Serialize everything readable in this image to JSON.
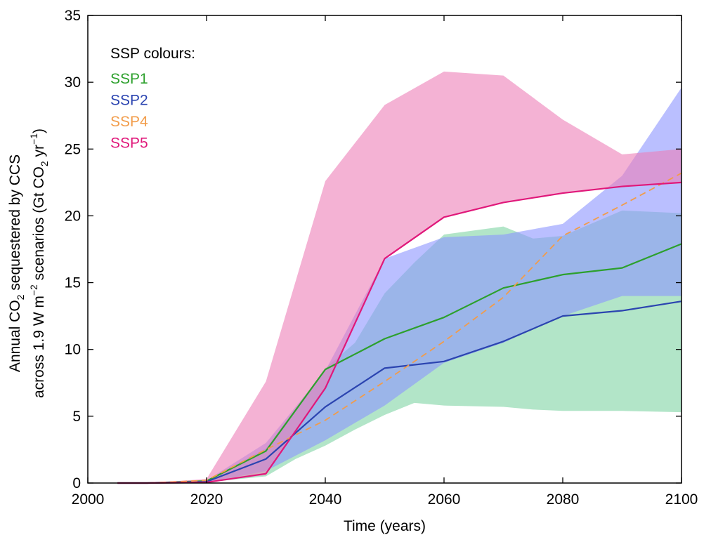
{
  "chart_data": {
    "type": "area",
    "xlabel": "Time (years)",
    "ylabel_line1": "Annual CO2 sequestered by CCS",
    "ylabel_line2": "across 1.9 W m−2 scenarios (Gt CO2 yr−1)",
    "xlim": [
      2000,
      2100
    ],
    "ylim": [
      0,
      35
    ],
    "xticks": [
      2000,
      2020,
      2040,
      2060,
      2080,
      2100
    ],
    "yticks": [
      0,
      5,
      10,
      15,
      20,
      25,
      30,
      35
    ],
    "grid": false,
    "legend": {
      "title": "SSP colours:",
      "placement": "top-left"
    },
    "series": [
      {
        "name": "SSP1",
        "color": "#2ca02c",
        "band_color": "#7fd3a3",
        "band_opacity": 0.6,
        "median": {
          "x": [
            2005,
            2010,
            2020,
            2030,
            2040,
            2050,
            2060,
            2070,
            2080,
            2090,
            2100
          ],
          "y": [
            0,
            0,
            0.15,
            2.4,
            8.5,
            10.8,
            12.4,
            14.6,
            15.6,
            16.1,
            17.9
          ]
        },
        "band": {
          "x": [
            2005,
            2010,
            2020,
            2030,
            2035,
            2040,
            2045,
            2050,
            2055,
            2060,
            2070,
            2075,
            2080,
            2090,
            2100
          ],
          "lower": [
            0,
            0,
            0.05,
            0.5,
            1.8,
            2.8,
            4.0,
            5.1,
            6.0,
            5.8,
            5.7,
            5.5,
            5.4,
            5.4,
            5.3
          ],
          "upper": [
            0,
            0,
            0.2,
            2.6,
            5.6,
            8.6,
            10.5,
            14.2,
            16.5,
            18.6,
            19.2,
            18.3,
            18.5,
            20.4,
            20.2
          ]
        }
      },
      {
        "name": "SSP2",
        "color": "#2b44b0",
        "band_color": "#8c94ff",
        "band_opacity": 0.6,
        "median": {
          "x": [
            2005,
            2010,
            2020,
            2030,
            2040,
            2050,
            2060,
            2070,
            2080,
            2090,
            2100
          ],
          "y": [
            0,
            0,
            0.1,
            1.8,
            5.7,
            8.6,
            9.1,
            10.6,
            12.5,
            12.9,
            13.6
          ]
        },
        "band": {
          "x": [
            2005,
            2010,
            2020,
            2030,
            2040,
            2050,
            2060,
            2070,
            2080,
            2090,
            2100
          ],
          "lower": [
            0,
            0,
            0.05,
            0.9,
            3.2,
            5.8,
            9.0,
            10.5,
            12.5,
            14.0,
            14.0
          ],
          "upper": [
            0,
            0,
            0.2,
            3.0,
            8.4,
            16.8,
            18.4,
            18.6,
            19.4,
            23.0,
            29.6
          ]
        }
      },
      {
        "name": "SSP4",
        "color": "#f29c4a",
        "dashed": true,
        "median": {
          "x": [
            2005,
            2010,
            2020,
            2030,
            2040,
            2050,
            2060,
            2070,
            2080,
            2090,
            2100
          ],
          "y": [
            0,
            0,
            0.2,
            2.5,
            4.7,
            7.6,
            10.6,
            13.9,
            18.5,
            20.8,
            23.2
          ]
        }
      },
      {
        "name": "SSP5",
        "color": "#e0187a",
        "band_color": "#ec7fb8",
        "band_opacity": 0.6,
        "median": {
          "x": [
            2005,
            2010,
            2020,
            2030,
            2040,
            2050,
            2060,
            2070,
            2080,
            2090,
            2100
          ],
          "y": [
            0,
            0,
            0.05,
            0.7,
            7.1,
            16.8,
            19.9,
            21.0,
            21.7,
            22.2,
            22.5
          ]
        },
        "band": {
          "x": [
            2005,
            2010,
            2020,
            2030,
            2040,
            2050,
            2060,
            2070,
            2080,
            2090,
            2100
          ],
          "lower": [
            0,
            0,
            0.05,
            0.6,
            7.0,
            16.8,
            19.9,
            21.0,
            21.7,
            22.2,
            22.5
          ],
          "upper": [
            0,
            0,
            0.3,
            7.6,
            22.6,
            28.3,
            30.8,
            30.5,
            27.2,
            24.6,
            25.0
          ]
        }
      }
    ]
  }
}
